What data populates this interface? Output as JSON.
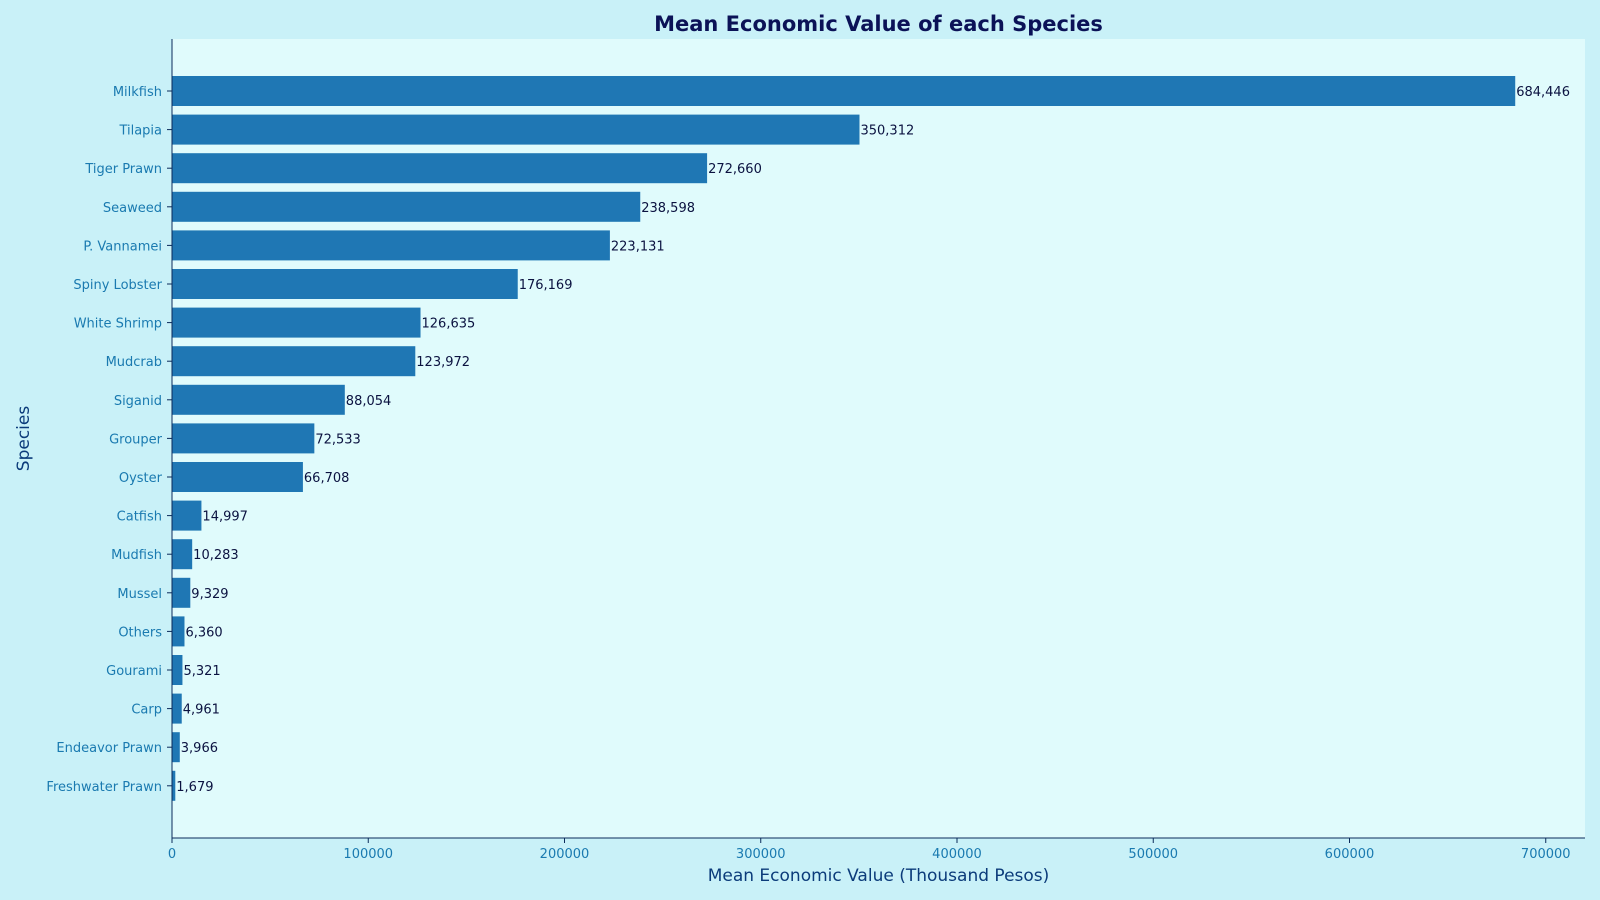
{
  "colors": {
    "figure_background": "#c9f1f8",
    "plot_background": "#e0fbfc",
    "bar": "#1f77b4"
  },
  "chart_data": {
    "type": "bar",
    "orientation": "horizontal",
    "title": "Mean Economic Value of each Species",
    "xlabel": "Mean Economic Value (Thousand Pesos)",
    "ylabel": "Species",
    "xlim": [
      0,
      720000
    ],
    "xticks": [
      0,
      100000,
      200000,
      300000,
      400000,
      500000,
      600000,
      700000
    ],
    "xtick_labels": [
      "0",
      "100000",
      "200000",
      "300000",
      "400000",
      "500000",
      "600000",
      "700000"
    ],
    "grid": false,
    "categories": [
      "Milkfish",
      "Tilapia",
      "Tiger Prawn",
      "Seaweed",
      "P. Vannamei",
      "Spiny Lobster",
      "White Shrimp",
      "Mudcrab",
      "Siganid",
      "Grouper",
      "Oyster",
      "Catfish",
      "Mudfish",
      "Mussel",
      "Others",
      "Gourami",
      "Carp",
      "Endeavor Prawn",
      "Freshwater Prawn"
    ],
    "values": [
      684446,
      350312,
      272660,
      238598,
      223131,
      176169,
      126635,
      123972,
      88054,
      72533,
      66708,
      14997,
      10283,
      9329,
      6360,
      5321,
      4961,
      3966,
      1679
    ],
    "value_labels": [
      "684,446",
      "350,312",
      "272,660",
      "238,598",
      "223,131",
      "176,169",
      "126,635",
      "123,972",
      "88,054",
      "72,533",
      "66,708",
      "14,997",
      "10,283",
      "9,329",
      "6,360",
      "5,321",
      "4,961",
      "3,966",
      "1,679"
    ]
  }
}
